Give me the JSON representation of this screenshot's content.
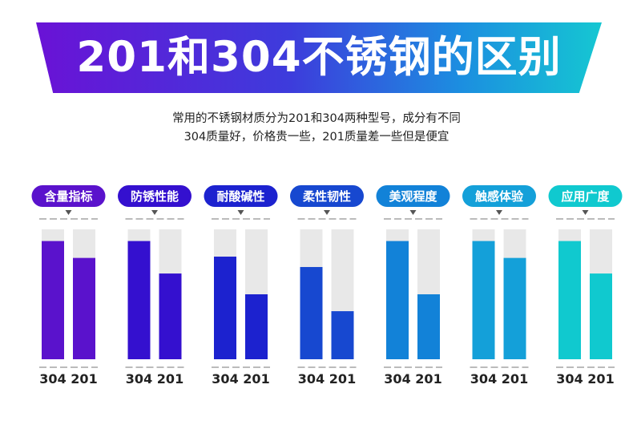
{
  "banner": {
    "title": "201和304不锈钢的区别",
    "subtitle_line1": "常用的不锈钢材质分为201和304两种型号，成分有不同",
    "subtitle_line2": "304质量好，价格贵一些，201质量差一些但是便宜"
  },
  "chart_data": {
    "type": "bar",
    "title": "201和304不锈钢的区别",
    "series_names": [
      "304",
      "201"
    ],
    "ylim": [
      0,
      100
    ],
    "groups": [
      {
        "label": "含量指标",
        "color": "#5a12cc",
        "values": [
          91,
          78
        ]
      },
      {
        "label": "防锈性能",
        "color": "#3410cf",
        "values": [
          91,
          66
        ]
      },
      {
        "label": "耐酸碱性",
        "color": "#1c22cf",
        "values": [
          79,
          50
        ]
      },
      {
        "label": "柔性韧性",
        "color": "#1748d0",
        "values": [
          71,
          37
        ]
      },
      {
        "label": "美观程度",
        "color": "#1282d8",
        "values": [
          91,
          50
        ]
      },
      {
        "label": "触感体验",
        "color": "#14a0d9",
        "values": [
          91,
          78
        ]
      },
      {
        "label": "应用广度",
        "color": "#10c9cf",
        "values": [
          91,
          66
        ]
      }
    ]
  }
}
